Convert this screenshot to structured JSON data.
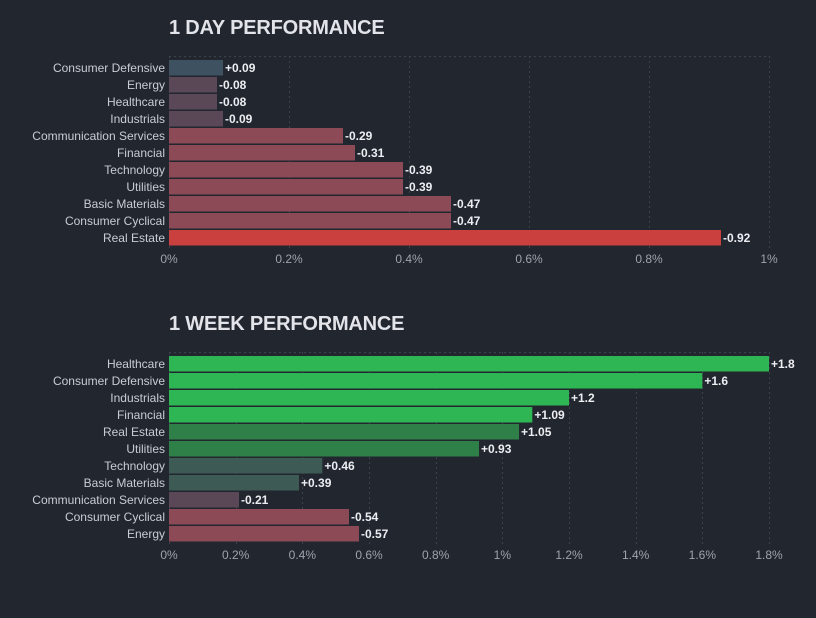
{
  "chart_data": [
    {
      "type": "bar",
      "orientation": "horizontal",
      "title": "1 DAY PERFORMANCE",
      "categories": [
        "Consumer Defensive",
        "Energy",
        "Healthcare",
        "Industrials",
        "Communication Services",
        "Financial",
        "Technology",
        "Utilities",
        "Basic Materials",
        "Consumer Cyclical",
        "Real Estate"
      ],
      "values": [
        0.09,
        -0.08,
        -0.08,
        -0.09,
        -0.29,
        -0.31,
        -0.39,
        -0.39,
        -0.47,
        -0.47,
        -0.92
      ],
      "value_labels": [
        "+0.09",
        "-0.08",
        "-0.08",
        "-0.09",
        "-0.29",
        "-0.31",
        "-0.39",
        "-0.39",
        "-0.47",
        "-0.47",
        "-0.92"
      ],
      "bar_magnitude": "absolute",
      "xlim": [
        0,
        1
      ],
      "xticks": [
        0,
        0.2,
        0.4,
        0.6,
        0.8,
        1
      ],
      "xtick_labels": [
        "0%",
        "0.2%",
        "0.4%",
        "0.6%",
        "0.8%",
        "1%"
      ],
      "grid": true,
      "colors": {
        "negative_strong": "#c9403f",
        "negative_mid": "#8b4a56",
        "negative_weak": "#5a4857",
        "positive_weak": "#3d5160",
        "positive_mid": "#2d7849",
        "positive_strong": "#2db653"
      }
    },
    {
      "type": "bar",
      "orientation": "horizontal",
      "title": "1 WEEK PERFORMANCE",
      "categories": [
        "Healthcare",
        "Consumer Defensive",
        "Industrials",
        "Financial",
        "Real Estate",
        "Utilities",
        "Technology",
        "Basic Materials",
        "Communication Services",
        "Consumer Cyclical",
        "Energy"
      ],
      "values": [
        1.8,
        1.6,
        1.2,
        1.09,
        1.05,
        0.93,
        0.46,
        0.39,
        -0.21,
        -0.54,
        -0.57
      ],
      "value_labels": [
        "+1.8",
        "+1.6",
        "+1.2",
        "+1.09",
        "+1.05",
        "+0.93",
        "+0.46",
        "+0.39",
        "-0.21",
        "-0.54",
        "-0.57"
      ],
      "bar_magnitude": "absolute",
      "xlim": [
        0,
        1.8
      ],
      "xticks": [
        0,
        0.2,
        0.4,
        0.6,
        0.8,
        1,
        1.2,
        1.4,
        1.6,
        1.8
      ],
      "xtick_labels": [
        "0%",
        "0.2%",
        "0.4%",
        "0.6%",
        "0.8%",
        "1%",
        "1.2%",
        "1.4%",
        "1.6%",
        "1.8%"
      ],
      "grid": true,
      "colors": {
        "negative_strong": "#c9403f",
        "negative_mid": "#8b4a56",
        "negative_weak": "#5a4857",
        "positive_weak": "#3d5a55",
        "positive_mid": "#2f8048",
        "positive_strong": "#2db653"
      }
    }
  ]
}
